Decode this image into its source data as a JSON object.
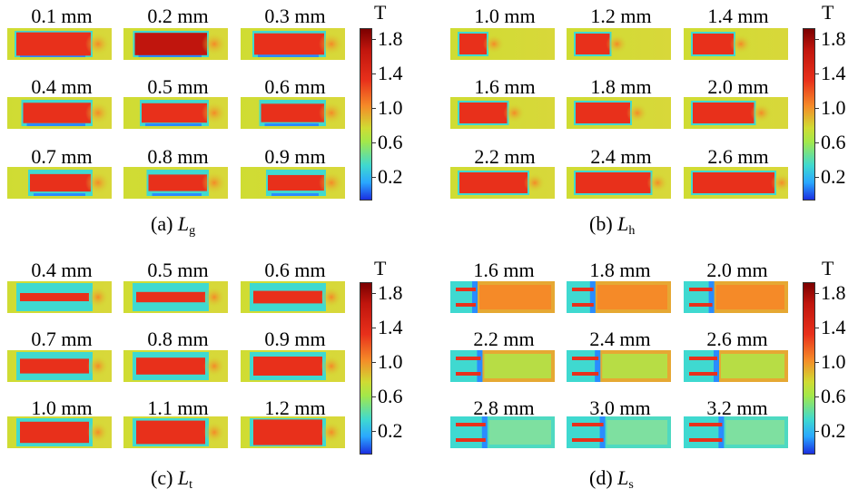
{
  "panels": [
    {
      "id": "a",
      "caption_prefix": "(a) ",
      "caption_var": "L",
      "caption_sub": "g",
      "labels": [
        "0.1 mm",
        "0.2 mm",
        "0.3 mm",
        "0.4 mm",
        "0.5 mm",
        "0.6 mm",
        "0.7 mm",
        "0.8 mm",
        "0.9 mm"
      ],
      "kind": "gap"
    },
    {
      "id": "b",
      "caption_prefix": "(b) ",
      "caption_var": "L",
      "caption_sub": "h",
      "labels": [
        "1.0 mm",
        "1.2 mm",
        "1.4 mm",
        "1.6 mm",
        "1.8 mm",
        "2.0 mm",
        "2.2 mm",
        "2.4 mm",
        "2.6 mm"
      ],
      "kind": "length"
    },
    {
      "id": "c",
      "caption_prefix": "(c) ",
      "caption_var": "L",
      "caption_sub": "t",
      "labels": [
        "0.4 mm",
        "0.5 mm",
        "0.6 mm",
        "0.7 mm",
        "0.8 mm",
        "0.9 mm",
        "1.0 mm",
        "1.1 mm",
        "1.2 mm"
      ],
      "kind": "thick"
    },
    {
      "id": "d",
      "caption_prefix": "(d) ",
      "caption_var": "L",
      "caption_sub": "s",
      "labels": [
        "1.6 mm",
        "1.8 mm",
        "2.0 mm",
        "2.2 mm",
        "2.4 mm",
        "2.6 mm",
        "2.8 mm",
        "3.0 mm",
        "3.2 mm"
      ],
      "kind": "slot"
    }
  ],
  "colorbar": {
    "unit": "T",
    "ticks": [
      "1.8",
      "1.4",
      "1.0",
      "0.6",
      "0.2"
    ]
  },
  "colors": {
    "field_hot": "#e8301b",
    "field_dark": "#c0150d",
    "field_mid": "#f58a28",
    "field_low": "#cfdc33",
    "field_cyan": "#3fd9d0",
    "field_blue": "#2a8cff"
  }
}
